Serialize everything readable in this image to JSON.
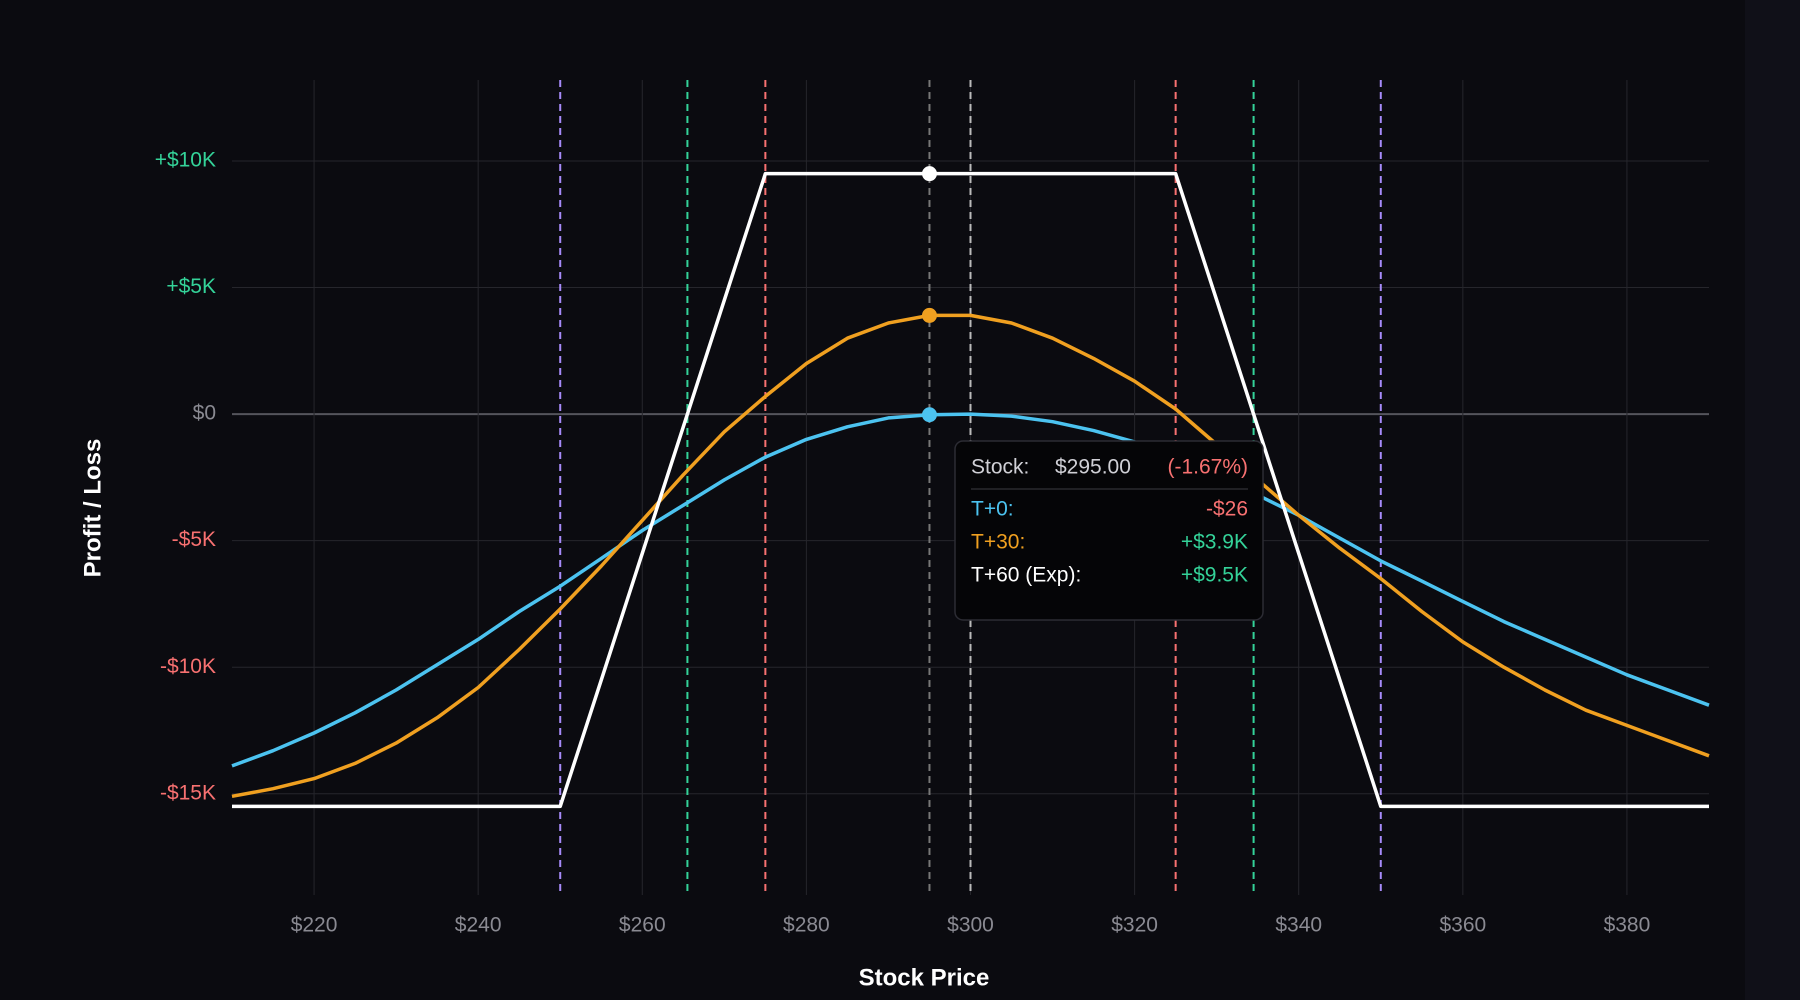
{
  "chart_data": {
    "type": "line",
    "x_label": "Stock Price",
    "y_label": "Profit / Loss",
    "xlim": [
      210,
      390
    ],
    "ylim": [
      -19000,
      13200
    ],
    "xticks": [
      {
        "value": 220,
        "label": "$220"
      },
      {
        "value": 240,
        "label": "$240"
      },
      {
        "value": 260,
        "label": "$260"
      },
      {
        "value": 280,
        "label": "$280"
      },
      {
        "value": 300,
        "label": "$300"
      },
      {
        "value": 320,
        "label": "$320"
      },
      {
        "value": 340,
        "label": "$340"
      },
      {
        "value": 360,
        "label": "$360"
      },
      {
        "value": 380,
        "label": "$380"
      }
    ],
    "yticks": [
      {
        "value": -15000,
        "label": "-$15K"
      },
      {
        "value": -10000,
        "label": "-$10K"
      },
      {
        "value": -5000,
        "label": "-$5K"
      },
      {
        "value": 0,
        "label": "$0"
      },
      {
        "value": 5000,
        "label": "+$5K"
      },
      {
        "value": 10000,
        "label": "+$10K"
      }
    ],
    "grid": true,
    "x": [
      210,
      215,
      220,
      225,
      230,
      235,
      240,
      245,
      250,
      255,
      260,
      265,
      270,
      275,
      280,
      285,
      290,
      295,
      300,
      305,
      310,
      315,
      320,
      325,
      330,
      335,
      340,
      345,
      350,
      355,
      360,
      365,
      370,
      375,
      380,
      385,
      390
    ],
    "series": [
      {
        "color": "#4cc3f0",
        "values": [
          -13900,
          -13300,
          -12600,
          -11800,
          -10900,
          -9900,
          -8900,
          -7800,
          -6800,
          -5700,
          -4600,
          -3600,
          -2600,
          -1700,
          -1000,
          -500,
          -150,
          -26,
          0,
          -80,
          -300,
          -650,
          -1100,
          -1700,
          -2400,
          -3200,
          -4000,
          -4900,
          -5800,
          -6600,
          -7400,
          -8200,
          -8900,
          -9600,
          -10300,
          -10900,
          -11500
        ]
      },
      {
        "color": "#f0a020",
        "values": [
          -15100,
          -14800,
          -14400,
          -13800,
          -13000,
          -12000,
          -10800,
          -9300,
          -7700,
          -6000,
          -4200,
          -2400,
          -700,
          700,
          2000,
          3000,
          3600,
          3900,
          3900,
          3600,
          3000,
          2200,
          1300,
          200,
          -1200,
          -2600,
          -4000,
          -5300,
          -6500,
          -7800,
          -9000,
          -10000,
          -10900,
          -11700,
          -12300,
          -12900,
          -13500
        ]
      },
      {
        "color": "#ffffff",
        "values": [
          -15500,
          -15500,
          -15500,
          -15500,
          -15500,
          -15500,
          -15500,
          -15500,
          -15500,
          -10500,
          -5500,
          -500,
          4500,
          9500,
          9500,
          9500,
          9500,
          9500,
          9500,
          9500,
          9500,
          9500,
          9500,
          9500,
          4500,
          -500,
          -5500,
          -10500,
          -15500,
          -15500,
          -15500,
          -15500,
          -15500,
          -15500,
          -15500,
          -15500,
          -15500
        ]
      }
    ],
    "vlines": [
      {
        "x": 250,
        "color": "#a78bfa"
      },
      {
        "x": 265.5,
        "color": "#34d399"
      },
      {
        "x": 275,
        "color": "#f87171"
      },
      {
        "x": 295,
        "color": "#777777"
      },
      {
        "x": 300,
        "color": "#bbbbbb"
      },
      {
        "x": 325,
        "color": "#f87171"
      },
      {
        "x": 334.5,
        "color": "#34d399"
      },
      {
        "x": 350,
        "color": "#a78bfa"
      }
    ],
    "tooltip": {
      "stock": {
        "label": "Stock:",
        "value": 295,
        "value_label": "$295.00",
        "change": -1.67,
        "change_label": "(-1.67%)"
      },
      "rows": [
        {
          "label": "T+0:",
          "color": "#4cc3f0",
          "value": -26,
          "value_label": "-$26"
        },
        {
          "label": "T+30:",
          "color": "#f0a020",
          "value": 3900,
          "value_label": "+$3.9K"
        },
        {
          "label": "T+60 (Exp):",
          "color": "#ffffff",
          "value": 9500,
          "value_label": "+$9.5K"
        }
      ]
    }
  }
}
